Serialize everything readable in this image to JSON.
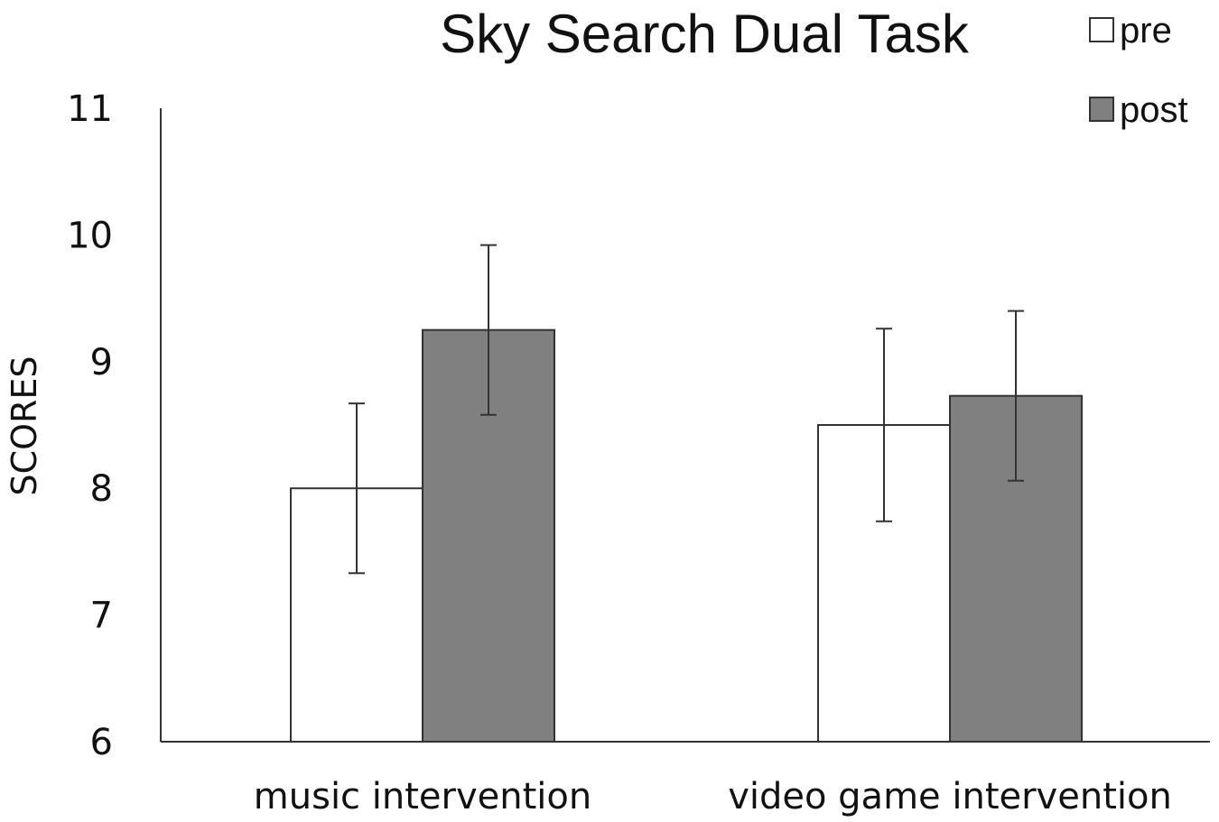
{
  "chart_data": {
    "type": "bar",
    "title": "Sky Search Dual Task",
    "ylabel": "SCORES",
    "xlabel": "",
    "categories": [
      "music intervention",
      "video game intervention"
    ],
    "ylim": [
      6,
      11
    ],
    "yticks": [
      6,
      7,
      8,
      9,
      10,
      11
    ],
    "legend_position": "top-right",
    "series": [
      {
        "name": "pre",
        "color": "#ffffff",
        "values": [
          8.0,
          8.5
        ],
        "error": [
          0.67,
          0.76
        ]
      },
      {
        "name": "post",
        "color": "#808080",
        "values": [
          9.25,
          8.73
        ],
        "error": [
          0.67,
          0.67
        ]
      }
    ]
  }
}
